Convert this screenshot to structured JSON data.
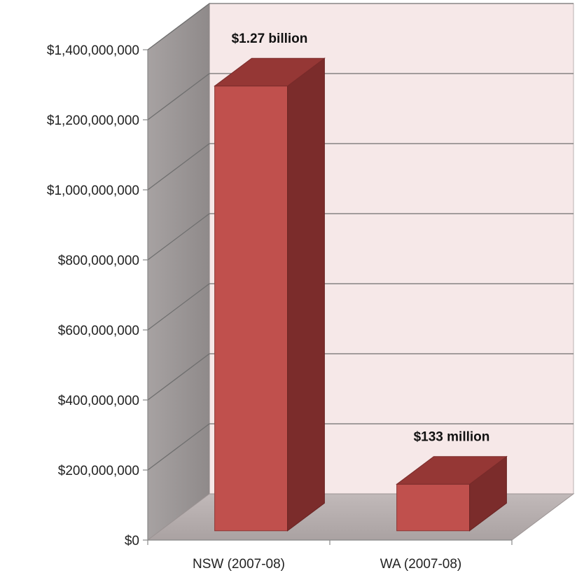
{
  "chart_data": {
    "type": "bar",
    "categories": [
      "NSW (2007-08)",
      "WA (2007-08)"
    ],
    "values": [
      1270000000,
      133000000
    ],
    "data_labels": [
      "$1.27 billion",
      "$133 million"
    ],
    "ylim": [
      0,
      1400000000
    ],
    "yticks": [
      0,
      200000000,
      400000000,
      600000000,
      800000000,
      1000000000,
      1200000000,
      1400000000
    ],
    "ytick_labels": [
      "$0",
      "$200,000,000",
      "$400,000,000",
      "$600,000,000",
      "$800,000,000",
      "$1,000,000,000",
      "$1,200,000,000",
      "$1,400,000,000"
    ],
    "grid": true,
    "style": "3d-column",
    "colors": {
      "bar_front": "#c0504d",
      "bar_top": "#953735",
      "bar_side": "#7b2c2b",
      "back_wall": "#f6e8e8",
      "side_wall": "#a39e9e",
      "floor": "#b9b1b1",
      "gridline": "#6f6f6f"
    }
  }
}
